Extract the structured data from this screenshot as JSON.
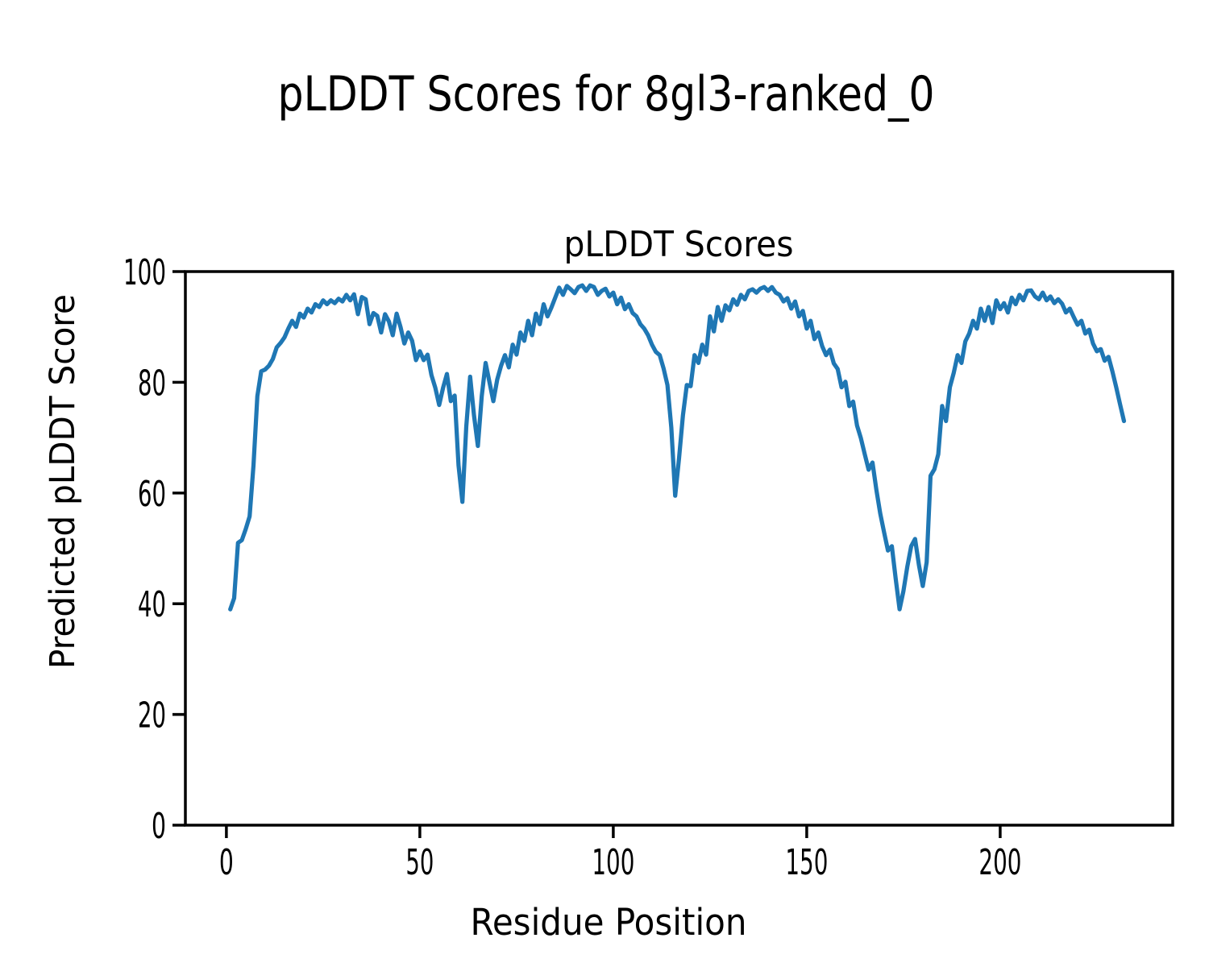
{
  "figure": {
    "background": "#ffffff",
    "suptitle": "pLDDT Scores for 8gl3-ranked_0"
  },
  "chart_data": {
    "type": "line",
    "suptitle": "pLDDT Scores for 8gl3-ranked_0",
    "axes_title": "pLDDT Scores",
    "xlabel": "Residue Position",
    "ylabel": "Predicted pLDDT Score",
    "xlim": [
      -10.6,
      244.6
    ],
    "ylim": [
      0,
      100
    ],
    "xticks": [
      0,
      50,
      100,
      150,
      200
    ],
    "yticks": [
      0,
      20,
      40,
      60,
      80,
      100
    ],
    "grid": false,
    "legend": null,
    "line_color": "#1f77b4",
    "axis_color": "#000000",
    "series": [
      {
        "name": "pLDDT",
        "x_start": 1,
        "x_end": 232,
        "y": [
          39.0,
          41.0,
          51.0,
          51.5,
          53.5,
          55.8,
          65.0,
          77.5,
          82.0,
          82.3,
          83.0,
          84.2,
          86.3,
          87.1,
          88.1,
          89.7,
          91.1,
          90.0,
          92.4,
          91.7,
          93.3,
          92.6,
          94.1,
          93.6,
          94.8,
          94.1,
          94.8,
          94.3,
          95.1,
          94.6,
          95.8,
          94.8,
          95.9,
          92.3,
          95.4,
          95.0,
          90.5,
          92.5,
          92.0,
          89.0,
          92.3,
          91.0,
          88.5,
          92.4,
          90.0,
          87.0,
          89.0,
          87.5,
          84.0,
          85.6,
          84.0,
          85.0,
          81.3,
          79.0,
          75.9,
          79.0,
          81.5,
          76.6,
          77.6,
          65.0,
          58.4,
          72.0,
          81.0,
          74.0,
          68.5,
          77.5,
          83.5,
          80.0,
          76.6,
          80.5,
          83.0,
          84.9,
          82.7,
          86.8,
          85.0,
          89.0,
          87.5,
          91.1,
          88.5,
          92.4,
          90.5,
          94.1,
          91.9,
          93.5,
          95.3,
          97.1,
          95.8,
          97.4,
          96.8,
          96.1,
          97.2,
          97.5,
          96.5,
          97.5,
          97.2,
          95.8,
          96.5,
          96.9,
          95.5,
          96.2,
          94.1,
          95.3,
          93.2,
          94.1,
          92.5,
          91.9,
          90.5,
          89.7,
          88.5,
          86.8,
          85.5,
          84.9,
          82.5,
          79.5,
          71.8,
          59.5,
          66.3,
          74.0,
          79.5,
          79.3,
          84.9,
          83.5,
          86.8,
          85.0,
          91.9,
          89.2,
          93.6,
          91.1,
          93.9,
          93.0,
          95.0,
          94.0,
          95.8,
          95.0,
          96.5,
          96.8,
          96.2,
          96.9,
          97.2,
          96.5,
          97.2,
          96.2,
          95.8,
          94.6,
          95.2,
          93.3,
          94.6,
          91.9,
          92.9,
          89.7,
          91.1,
          87.8,
          89.0,
          86.5,
          84.9,
          85.9,
          83.4,
          82.4,
          79.1,
          80.1,
          75.7,
          76.5,
          72.2,
          69.9,
          67.0,
          64.2,
          65.5,
          60.6,
          56.3,
          52.9,
          49.6,
          50.4,
          44.5,
          39.0,
          42.3,
          46.7,
          50.4,
          51.7,
          47.0,
          43.2,
          47.5,
          63.1,
          64.3,
          67.0,
          75.7,
          73.0,
          79.1,
          81.7,
          84.9,
          83.5,
          87.4,
          88.8,
          91.1,
          89.7,
          93.3,
          91.1,
          93.6,
          90.7,
          94.8,
          93.2,
          94.3,
          92.6,
          95.3,
          94.1,
          95.8,
          94.8,
          96.5,
          96.6,
          95.5,
          95.0,
          96.2,
          94.8,
          95.5,
          94.3,
          95.0,
          94.2,
          92.6,
          93.3,
          91.8,
          90.4,
          91.1,
          88.8,
          89.5,
          87.0,
          85.6,
          86.0,
          83.9,
          84.6,
          82.0,
          79.1,
          76.0,
          73.0
        ]
      }
    ]
  }
}
